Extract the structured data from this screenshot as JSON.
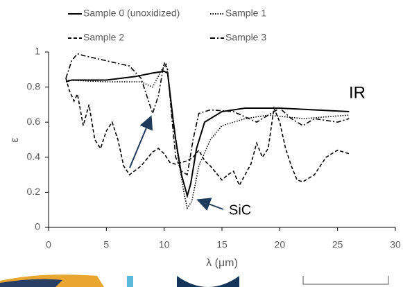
{
  "chart_data": {
    "type": "line",
    "xlabel": "λ (μm)",
    "ylabel": "ε",
    "annotations": [
      "IR",
      "SiC"
    ],
    "xlim": [
      0,
      30
    ],
    "xticks": [
      0,
      5,
      10,
      15,
      20,
      25,
      30
    ],
    "ylim": [
      0,
      1
    ],
    "yticks": [
      0,
      0.2,
      0.4,
      0.6,
      0.8,
      1
    ],
    "grid": false,
    "series": [
      {
        "name": "Sample 0 (unoxidized)",
        "color": "#000000",
        "style": "solid",
        "x": [
          1.5,
          2,
          5,
          7.5,
          9,
          10,
          10.3,
          10.8,
          11,
          11.5,
          12,
          12.3,
          12.8,
          13.5,
          15,
          17,
          20,
          23,
          26
        ],
        "values": [
          0.83,
          0.84,
          0.84,
          0.86,
          0.88,
          0.89,
          0.88,
          0.6,
          0.5,
          0.3,
          0.18,
          0.25,
          0.45,
          0.6,
          0.66,
          0.68,
          0.68,
          0.67,
          0.66
        ]
      },
      {
        "name": "Sample 1",
        "color": "#000000",
        "style": "dotted",
        "x": [
          1.5,
          5,
          8,
          9,
          9.8,
          10.2,
          10.6,
          11.2,
          11.7,
          12,
          12.4,
          13,
          14,
          15,
          17,
          19,
          22,
          24,
          26
        ],
        "values": [
          0.84,
          0.83,
          0.83,
          0.8,
          0.9,
          0.93,
          0.7,
          0.4,
          0.2,
          0.11,
          0.15,
          0.35,
          0.5,
          0.58,
          0.62,
          0.64,
          0.62,
          0.63,
          0.64
        ]
      },
      {
        "name": "Sample 2",
        "color": "#000000",
        "style": "dashed",
        "x": [
          1.5,
          1.8,
          2.2,
          2.5,
          3,
          3.5,
          4,
          4.5,
          5,
          5.5,
          6,
          6.5,
          7,
          8,
          9,
          9.5,
          10,
          10.5,
          11,
          11.5,
          12,
          12.5,
          13,
          13.5,
          14,
          15,
          15.5,
          16,
          16.5,
          17,
          17.5,
          18,
          18.5,
          19,
          19.5,
          20,
          20.5,
          21,
          21.5,
          22,
          23,
          24,
          25,
          26
        ],
        "values": [
          0.85,
          0.78,
          0.72,
          0.76,
          0.58,
          0.7,
          0.5,
          0.45,
          0.55,
          0.6,
          0.5,
          0.35,
          0.3,
          0.35,
          0.43,
          0.45,
          0.42,
          0.37,
          0.36,
          0.37,
          0.38,
          0.4,
          0.44,
          0.38,
          0.35,
          0.27,
          0.3,
          0.32,
          0.24,
          0.3,
          0.36,
          0.48,
          0.4,
          0.45,
          0.68,
          0.6,
          0.45,
          0.35,
          0.27,
          0.26,
          0.3,
          0.4,
          0.44,
          0.42
        ]
      },
      {
        "name": "Sample 3",
        "color": "#000000",
        "style": "dashdot",
        "x": [
          1.5,
          2,
          2.5,
          3,
          5,
          7,
          8,
          8.5,
          9,
          9.5,
          10,
          10.3,
          10.7,
          11,
          11.5,
          12,
          12.5,
          13,
          14,
          16,
          18,
          20,
          21,
          22,
          23,
          25,
          26
        ],
        "values": [
          0.85,
          0.95,
          0.99,
          0.98,
          0.95,
          0.92,
          0.85,
          0.75,
          0.65,
          0.75,
          0.94,
          0.9,
          0.6,
          0.4,
          0.32,
          0.3,
          0.5,
          0.65,
          0.67,
          0.66,
          0.6,
          0.68,
          0.62,
          0.58,
          0.62,
          0.6,
          0.62
        ]
      }
    ]
  }
}
